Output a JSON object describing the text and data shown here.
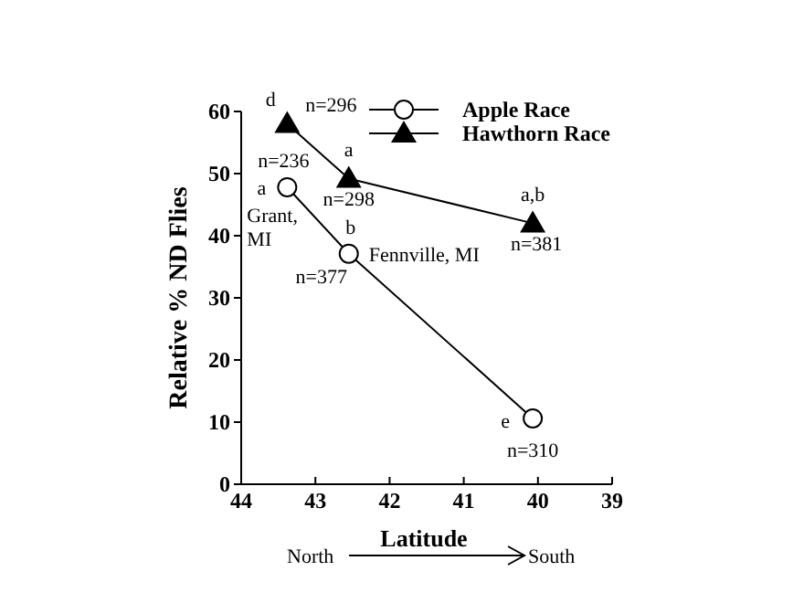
{
  "chart_data": {
    "type": "line",
    "xlabel": "Latitude",
    "ylabel": "Relative % ND Flies",
    "x": [
      43.38,
      42.55,
      40.07
    ],
    "xlim": [
      44,
      39
    ],
    "xticks": [
      44,
      43,
      42,
      41,
      40,
      39
    ],
    "ylim": [
      0,
      60
    ],
    "yticks": [
      0,
      10,
      20,
      30,
      40,
      50,
      60
    ],
    "grid": false,
    "legend": "top right",
    "line_style": "solid",
    "series": [
      {
        "name": "Apple Race",
        "color": "#000000",
        "marker": "circle",
        "values": [
          47.8,
          37.1,
          10.6
        ]
      },
      {
        "name": "Hawthorn Race",
        "color": "#000000",
        "marker": "triangle",
        "values": [
          58.0,
          49.2,
          42.0
        ]
      }
    ],
    "annotations": [
      {
        "text": "d",
        "x": 43.38,
        "y": 58.0
      },
      {
        "text": "n=296",
        "x": 43.38,
        "y": 58.0
      },
      {
        "text": "a",
        "x": 42.55,
        "y": 49.2
      },
      {
        "text": "n=298",
        "x": 42.55,
        "y": 49.2
      },
      {
        "text": "a,b",
        "x": 40.07,
        "y": 42.0
      },
      {
        "text": "n=381",
        "x": 40.07,
        "y": 42.0
      },
      {
        "text": "n=236",
        "x": 43.38,
        "y": 47.8
      },
      {
        "text": "a",
        "x": 43.38,
        "y": 47.8
      },
      {
        "text": "Grant, MI",
        "x": 43.38,
        "y": 47.8
      },
      {
        "text": "b",
        "x": 42.55,
        "y": 37.1
      },
      {
        "text": "Fennville, MI",
        "x": 42.55,
        "y": 37.1
      },
      {
        "text": "n=377",
        "x": 42.55,
        "y": 37.1
      },
      {
        "text": "e",
        "x": 40.07,
        "y": 10.6
      },
      {
        "text": "n=310",
        "x": 40.07,
        "y": 10.6
      },
      "North",
      "South"
    ]
  }
}
